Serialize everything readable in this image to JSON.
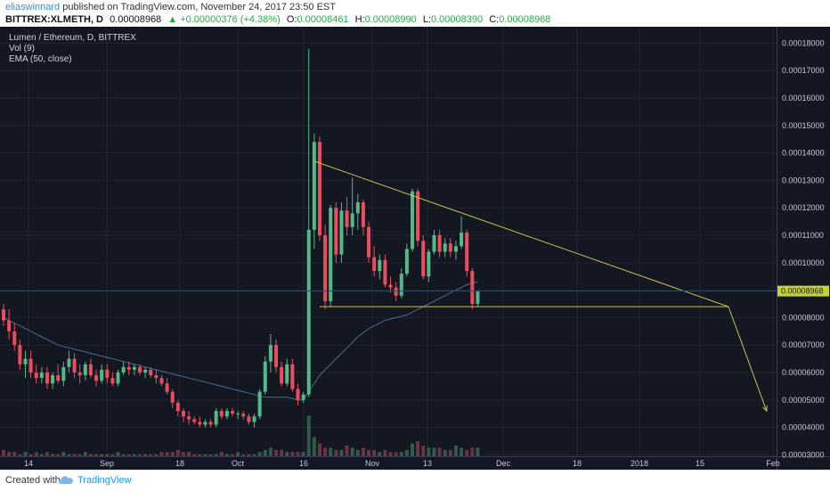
{
  "header": {
    "author": "eliaswinnard",
    "published_text": "published on TradingView.com, November 24, 2017 23:50 EST",
    "symbol": "BITTREX:XLMETH, D",
    "last": "0.00008968",
    "change_arrow": "▲",
    "change": "+0.00000376 (+4.38%)",
    "o_label": "O:",
    "o_value": "0.00008461",
    "h_label": "H:",
    "h_value": "0.00008990",
    "l_label": "L:",
    "l_value": "0.00008390",
    "c_label": "C:",
    "c_value": "0.00008968"
  },
  "legend": {
    "title": "Lumen / Ethereum, D, BITTREX",
    "vol": "Vol (9)",
    "ema": "EMA (50, close)"
  },
  "price_tag": "0.00008968",
  "footer": {
    "created_with": "Created with",
    "brand": "TradingView"
  },
  "colors": {
    "background": "#131722",
    "up": "#53b987",
    "down": "#eb4d5c",
    "vol_up": "#305a4b",
    "vol_down": "#6b3440",
    "ema": "#4a6d8c",
    "trendline": "#c8c24a",
    "grid": "#1f2431",
    "price_tag": "#c9d13a"
  },
  "chart_data": {
    "type": "candlestick",
    "title": "Lumen / Ethereum, D, BITTREX",
    "y_ticks": [
      "0.00003000",
      "0.00004000",
      "0.00005000",
      "0.00006000",
      "0.00007000",
      "0.00008000",
      "0.00009000",
      "0.00010000",
      "0.00011000",
      "0.00012000",
      "0.00013000",
      "0.00014000",
      "0.00015000",
      "0.00016000",
      "0.00017000",
      "0.00018000"
    ],
    "x_ticks": [
      "14",
      "Sep",
      "18",
      "Oct",
      "16",
      "Nov",
      "13",
      "Dec",
      "18",
      "2018",
      "15",
      "Feb"
    ],
    "ylim": [
      2.95e-05,
      0.000185
    ],
    "last_price": 8.968e-05,
    "indicators": [
      "Vol (9)",
      "EMA (50, close)"
    ],
    "candles": [
      {
        "o": 8.3,
        "h": 8.5,
        "l": 7.7,
        "c": 7.9
      },
      {
        "o": 7.9,
        "h": 8.3,
        "l": 7.2,
        "c": 7.5
      },
      {
        "o": 7.5,
        "h": 7.8,
        "l": 6.8,
        "c": 7.0
      },
      {
        "o": 7.0,
        "h": 7.2,
        "l": 6.1,
        "c": 6.3
      },
      {
        "o": 6.3,
        "h": 6.8,
        "l": 5.8,
        "c": 6.5
      },
      {
        "o": 6.5,
        "h": 6.8,
        "l": 5.8,
        "c": 6.0
      },
      {
        "o": 6.0,
        "h": 6.3,
        "l": 5.6,
        "c": 5.8
      },
      {
        "o": 5.8,
        "h": 6.2,
        "l": 5.6,
        "c": 6.0
      },
      {
        "o": 6.0,
        "h": 6.2,
        "l": 5.4,
        "c": 5.6
      },
      {
        "o": 5.6,
        "h": 6.0,
        "l": 5.4,
        "c": 5.9
      },
      {
        "o": 5.9,
        "h": 6.3,
        "l": 5.6,
        "c": 5.7
      },
      {
        "o": 5.7,
        "h": 6.4,
        "l": 5.5,
        "c": 6.2
      },
      {
        "o": 6.2,
        "h": 6.8,
        "l": 6.0,
        "c": 6.5
      },
      {
        "o": 6.5,
        "h": 6.7,
        "l": 5.8,
        "c": 6.0
      },
      {
        "o": 6.0,
        "h": 6.3,
        "l": 5.6,
        "c": 5.9
      },
      {
        "o": 5.9,
        "h": 6.4,
        "l": 5.7,
        "c": 6.3
      },
      {
        "o": 6.3,
        "h": 6.5,
        "l": 5.8,
        "c": 5.9
      },
      {
        "o": 5.9,
        "h": 6.1,
        "l": 5.5,
        "c": 5.7
      },
      {
        "o": 5.7,
        "h": 6.3,
        "l": 5.6,
        "c": 6.1
      },
      {
        "o": 6.1,
        "h": 6.3,
        "l": 5.6,
        "c": 5.8
      },
      {
        "o": 5.8,
        "h": 6.0,
        "l": 5.5,
        "c": 5.6
      },
      {
        "o": 5.6,
        "h": 6.1,
        "l": 5.5,
        "c": 6.0
      },
      {
        "o": 6.0,
        "h": 6.4,
        "l": 5.9,
        "c": 6.2
      },
      {
        "o": 6.2,
        "h": 6.4,
        "l": 5.9,
        "c": 6.1
      },
      {
        "o": 6.1,
        "h": 6.3,
        "l": 5.9,
        "c": 6.2
      },
      {
        "o": 6.2,
        "h": 6.3,
        "l": 5.9,
        "c": 6.0
      },
      {
        "o": 6.0,
        "h": 6.2,
        "l": 5.8,
        "c": 6.1
      },
      {
        "o": 6.1,
        "h": 6.2,
        "l": 5.8,
        "c": 5.9
      },
      {
        "o": 5.9,
        "h": 6.1,
        "l": 5.6,
        "c": 5.8
      },
      {
        "o": 5.8,
        "h": 5.9,
        "l": 5.5,
        "c": 5.6
      },
      {
        "o": 5.6,
        "h": 5.8,
        "l": 5.2,
        "c": 5.3
      },
      {
        "o": 5.3,
        "h": 5.4,
        "l": 4.7,
        "c": 4.9
      },
      {
        "o": 4.9,
        "h": 5.0,
        "l": 4.4,
        "c": 4.6
      },
      {
        "o": 4.6,
        "h": 4.7,
        "l": 4.2,
        "c": 4.4
      },
      {
        "o": 4.4,
        "h": 4.6,
        "l": 4.1,
        "c": 4.3
      },
      {
        "o": 4.3,
        "h": 4.4,
        "l": 4.1,
        "c": 4.2
      },
      {
        "o": 4.2,
        "h": 4.4,
        "l": 4.0,
        "c": 4.1
      },
      {
        "o": 4.1,
        "h": 4.3,
        "l": 4.0,
        "c": 4.2
      },
      {
        "o": 4.2,
        "h": 4.3,
        "l": 4.0,
        "c": 4.1
      },
      {
        "o": 4.1,
        "h": 4.7,
        "l": 4.0,
        "c": 4.6
      },
      {
        "o": 4.6,
        "h": 4.7,
        "l": 4.3,
        "c": 4.4
      },
      {
        "o": 4.4,
        "h": 4.7,
        "l": 4.3,
        "c": 4.6
      },
      {
        "o": 4.6,
        "h": 4.7,
        "l": 4.4,
        "c": 4.5
      },
      {
        "o": 4.5,
        "h": 4.6,
        "l": 4.3,
        "c": 4.5
      },
      {
        "o": 4.5,
        "h": 4.6,
        "l": 4.3,
        "c": 4.4
      },
      {
        "o": 4.4,
        "h": 4.5,
        "l": 4.1,
        "c": 4.2
      },
      {
        "o": 4.2,
        "h": 4.5,
        "l": 4.0,
        "c": 4.4
      },
      {
        "o": 4.4,
        "h": 5.4,
        "l": 4.3,
        "c": 5.3
      },
      {
        "o": 5.3,
        "h": 6.6,
        "l": 5.2,
        "c": 6.4
      },
      {
        "o": 6.4,
        "h": 7.4,
        "l": 6.0,
        "c": 7.0
      },
      {
        "o": 7.0,
        "h": 7.2,
        "l": 6.0,
        "c": 6.2
      },
      {
        "o": 6.2,
        "h": 6.4,
        "l": 5.5,
        "c": 5.6
      },
      {
        "o": 5.6,
        "h": 6.5,
        "l": 5.5,
        "c": 6.3
      },
      {
        "o": 6.3,
        "h": 6.5,
        "l": 5.3,
        "c": 5.4
      },
      {
        "o": 5.4,
        "h": 5.6,
        "l": 4.8,
        "c": 5.0
      },
      {
        "o": 5.0,
        "h": 5.3,
        "l": 4.9,
        "c": 5.2
      },
      {
        "o": 5.2,
        "h": 17.8,
        "l": 5.1,
        "c": 11.2
      },
      {
        "o": 11.2,
        "h": 14.7,
        "l": 10.5,
        "c": 14.4
      },
      {
        "o": 14.4,
        "h": 14.6,
        "l": 10.8,
        "c": 11.0
      },
      {
        "o": 11.0,
        "h": 11.4,
        "l": 8.3,
        "c": 8.6
      },
      {
        "o": 8.6,
        "h": 12.1,
        "l": 8.4,
        "c": 12.0
      },
      {
        "o": 12.0,
        "h": 12.2,
        "l": 10.0,
        "c": 10.3
      },
      {
        "o": 10.3,
        "h": 12.2,
        "l": 10.0,
        "c": 11.9
      },
      {
        "o": 11.9,
        "h": 12.4,
        "l": 11.0,
        "c": 11.3
      },
      {
        "o": 11.3,
        "h": 13.1,
        "l": 11.0,
        "c": 11.8
      },
      {
        "o": 11.8,
        "h": 12.5,
        "l": 11.2,
        "c": 12.2
      },
      {
        "o": 12.2,
        "h": 12.3,
        "l": 11.0,
        "c": 11.3
      },
      {
        "o": 11.3,
        "h": 11.5,
        "l": 10.0,
        "c": 10.2
      },
      {
        "o": 10.2,
        "h": 10.6,
        "l": 9.5,
        "c": 9.7
      },
      {
        "o": 9.7,
        "h": 10.3,
        "l": 9.4,
        "c": 10.1
      },
      {
        "o": 10.1,
        "h": 10.3,
        "l": 9.1,
        "c": 9.2
      },
      {
        "o": 9.2,
        "h": 9.5,
        "l": 8.9,
        "c": 9.1
      },
      {
        "o": 9.1,
        "h": 9.3,
        "l": 8.6,
        "c": 8.8
      },
      {
        "o": 8.8,
        "h": 9.8,
        "l": 8.7,
        "c": 9.6
      },
      {
        "o": 9.6,
        "h": 10.7,
        "l": 9.5,
        "c": 10.5
      },
      {
        "o": 10.5,
        "h": 12.7,
        "l": 10.4,
        "c": 12.6
      },
      {
        "o": 12.6,
        "h": 12.7,
        "l": 10.6,
        "c": 10.8
      },
      {
        "o": 10.8,
        "h": 11.0,
        "l": 9.4,
        "c": 9.5
      },
      {
        "o": 9.5,
        "h": 10.5,
        "l": 9.3,
        "c": 10.4
      },
      {
        "o": 10.4,
        "h": 11.2,
        "l": 10.3,
        "c": 11.0
      },
      {
        "o": 11.0,
        "h": 11.2,
        "l": 10.2,
        "c": 10.4
      },
      {
        "o": 10.4,
        "h": 10.9,
        "l": 10.2,
        "c": 10.7
      },
      {
        "o": 10.7,
        "h": 10.9,
        "l": 10.2,
        "c": 10.4
      },
      {
        "o": 10.4,
        "h": 10.8,
        "l": 10.1,
        "c": 10.6
      },
      {
        "o": 10.6,
        "h": 11.7,
        "l": 10.5,
        "c": 11.1
      },
      {
        "o": 11.1,
        "h": 11.2,
        "l": 9.5,
        "c": 9.7
      },
      {
        "o": 9.7,
        "h": 9.8,
        "l": 8.3,
        "c": 8.5
      },
      {
        "o": 8.5,
        "h": 9.0,
        "l": 8.4,
        "c": 8.97
      }
    ],
    "volume": [
      3,
      2,
      2,
      1,
      2,
      1,
      2,
      1,
      2,
      1,
      1,
      2,
      1,
      1,
      1,
      2,
      1,
      1,
      1,
      1,
      1,
      2,
      1,
      1,
      1,
      1,
      1,
      1,
      1,
      2,
      2,
      2,
      3,
      2,
      2,
      1,
      1,
      1,
      1,
      1,
      2,
      1,
      1,
      2,
      1,
      1,
      1,
      2,
      3,
      4,
      3,
      3,
      2,
      2,
      2,
      2,
      19,
      9,
      6,
      4,
      4,
      3,
      3,
      5,
      4,
      3,
      4,
      3,
      3,
      2,
      3,
      2,
      2,
      2,
      3,
      6,
      7,
      5,
      4,
      4,
      4,
      3,
      3,
      5,
      4,
      3,
      4,
      4
    ],
    "ema": [
      8.0,
      7.9,
      7.8,
      7.7,
      7.6,
      7.5,
      7.4,
      7.3,
      7.2,
      7.1,
      7.0,
      6.95,
      6.9,
      6.85,
      6.8,
      6.75,
      6.7,
      6.65,
      6.6,
      6.55,
      6.5,
      6.45,
      6.4,
      6.35,
      6.3,
      6.25,
      6.2,
      6.15,
      6.1,
      6.05,
      6.0,
      5.95,
      5.9,
      5.85,
      5.8,
      5.75,
      5.7,
      5.65,
      5.6,
      5.55,
      5.5,
      5.45,
      5.4,
      5.35,
      5.3,
      5.25,
      5.2,
      5.15,
      5.1,
      5.1,
      5.1,
      5.1,
      5.1,
      5.05,
      5.0,
      5.0,
      5.3,
      5.6,
      5.9,
      6.1,
      6.3,
      6.5,
      6.7,
      6.9,
      7.1,
      7.3,
      7.45,
      7.6,
      7.7,
      7.8,
      7.9,
      7.95,
      8.0,
      8.05,
      8.1,
      8.2,
      8.3,
      8.4,
      8.5,
      8.6,
      8.7,
      8.8,
      8.9,
      9.0,
      9.1,
      9.2,
      9.25,
      9.3
    ],
    "trendlines": [
      {
        "from": {
          "i": 57,
          "p": 13.7
        },
        "to": {
          "i": 133,
          "p": 8.4
        }
      },
      {
        "from": {
          "i": 58,
          "p": 8.4
        },
        "to": {
          "i": 133,
          "p": 8.4
        }
      },
      {
        "from": {
          "i": 133,
          "p": 8.4
        },
        "to": {
          "i": 140,
          "p": 4.6
        }
      }
    ],
    "price_scale_unit": 1e-05
  }
}
